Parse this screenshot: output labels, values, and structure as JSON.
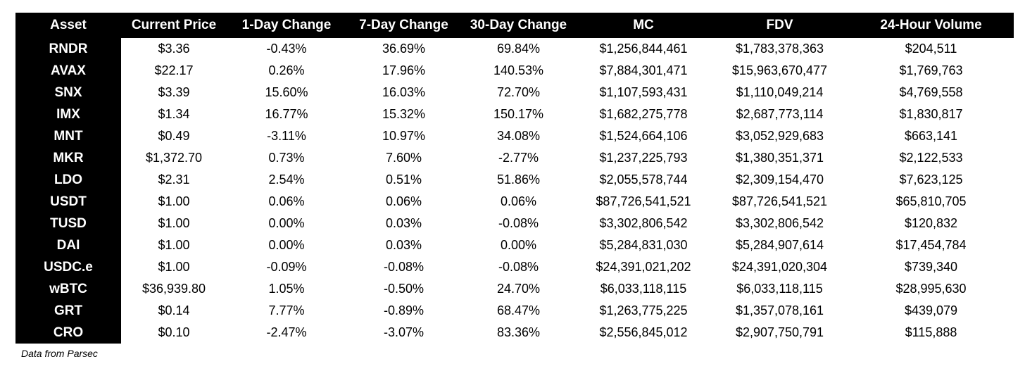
{
  "table": {
    "headers": [
      "Asset",
      "Current Price",
      "1-Day Change",
      "7-Day Change",
      "30-Day Change",
      "MC",
      "FDV",
      "24-Hour Volume"
    ],
    "rows": [
      [
        "RNDR",
        "$3.36",
        "-0.43%",
        "36.69%",
        "69.84%",
        "$1,256,844,461",
        "$1,783,378,363",
        "$204,511"
      ],
      [
        "AVAX",
        "$22.17",
        "0.26%",
        "17.96%",
        "140.53%",
        "$7,884,301,471",
        "$15,963,670,477",
        "$1,769,763"
      ],
      [
        "SNX",
        "$3.39",
        "15.60%",
        "16.03%",
        "72.70%",
        "$1,107,593,431",
        "$1,110,049,214",
        "$4,769,558"
      ],
      [
        "IMX",
        "$1.34",
        "16.77%",
        "15.32%",
        "150.17%",
        "$1,682,275,778",
        "$2,687,773,114",
        "$1,830,817"
      ],
      [
        "MNT",
        "$0.49",
        "-3.11%",
        "10.97%",
        "34.08%",
        "$1,524,664,106",
        "$3,052,929,683",
        "$663,141"
      ],
      [
        "MKR",
        "$1,372.70",
        "0.73%",
        "7.60%",
        "-2.77%",
        "$1,237,225,793",
        "$1,380,351,371",
        "$2,122,533"
      ],
      [
        "LDO",
        "$2.31",
        "2.54%",
        "0.51%",
        "51.86%",
        "$2,055,578,744",
        "$2,309,154,470",
        "$7,623,125"
      ],
      [
        "USDT",
        "$1.00",
        "0.06%",
        "0.06%",
        "0.06%",
        "$87,726,541,521",
        "$87,726,541,521",
        "$65,810,705"
      ],
      [
        "TUSD",
        "$1.00",
        "0.00%",
        "0.03%",
        "-0.08%",
        "$3,302,806,542",
        "$3,302,806,542",
        "$120,832"
      ],
      [
        "DAI",
        "$1.00",
        "0.00%",
        "0.03%",
        "0.00%",
        "$5,284,831,030",
        "$5,284,907,614",
        "$17,454,784"
      ],
      [
        "USDC.e",
        "$1.00",
        "-0.09%",
        "-0.08%",
        "-0.08%",
        "$24,391,021,202",
        "$24,391,020,304",
        "$739,340"
      ],
      [
        "wBTC",
        "$36,939.80",
        "1.05%",
        "-0.50%",
        "24.70%",
        "$6,033,118,115",
        "$6,033,118,115",
        "$28,995,630"
      ],
      [
        "GRT",
        "$0.14",
        "7.77%",
        "-0.89%",
        "68.47%",
        "$1,263,775,225",
        "$1,357,078,161",
        "$439,079"
      ],
      [
        "CRO",
        "$0.10",
        "-2.47%",
        "-3.07%",
        "83.36%",
        "$2,556,845,012",
        "$2,907,750,791",
        "$115,888"
      ]
    ]
  },
  "footer": {
    "source": "Data from Parsec"
  },
  "colors": {
    "header_bg": "#000000",
    "header_text": "#ffffff",
    "cell_bg": "#ffffff",
    "cell_text": "#000000"
  }
}
